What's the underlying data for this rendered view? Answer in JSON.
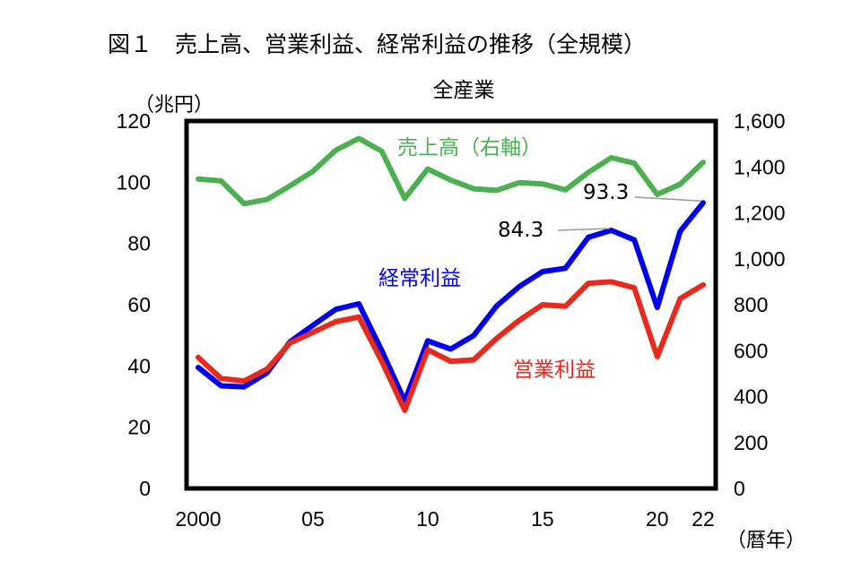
{
  "chart_data": {
    "type": "line",
    "title": "図１　売上高、営業利益、経常利益の推移（全規模）",
    "subtitle": "全産業",
    "ylabel": "（兆円）",
    "xlabel": "（暦年）",
    "ylim": [
      0,
      120
    ],
    "y2lim": [
      0,
      1600
    ],
    "yticks": [
      "0",
      "20",
      "40",
      "60",
      "80",
      "100",
      "120"
    ],
    "y2ticks": [
      "0",
      "200",
      "400",
      "600",
      "800",
      "1,000",
      "1,200",
      "1,400",
      "1,600"
    ],
    "x": [
      2000,
      2001,
      2002,
      2003,
      2004,
      2005,
      2006,
      2007,
      2008,
      2009,
      2010,
      2011,
      2012,
      2013,
      2014,
      2015,
      2016,
      2017,
      2018,
      2019,
      2020,
      2021,
      2022
    ],
    "xticks": [
      {
        "year": 2000,
        "label": "2000"
      },
      {
        "year": 2005,
        "label": "05"
      },
      {
        "year": 2010,
        "label": "10"
      },
      {
        "year": 2015,
        "label": "15"
      },
      {
        "year": 2020,
        "label": "20"
      },
      {
        "year": 2022,
        "label": "22"
      }
    ],
    "series": [
      {
        "name": "売上高（右軸）",
        "axis": "right",
        "color": "#4caf50",
        "values": [
          1347,
          1339,
          1240,
          1258,
          1318,
          1381,
          1473,
          1524,
          1468,
          1263,
          1391,
          1343,
          1305,
          1298,
          1332,
          1326,
          1300,
          1376,
          1440,
          1416,
          1280,
          1325,
          1420
        ]
      },
      {
        "name": "経常利益",
        "axis": "left",
        "color": "#0000ee",
        "values": [
          39.5,
          33.5,
          33.2,
          37.8,
          47.9,
          53.3,
          58.5,
          60.3,
          45.0,
          28.5,
          48.2,
          45.5,
          49.9,
          59.6,
          66.0,
          70.8,
          71.9,
          82.0,
          84.3,
          81.2,
          59.1,
          84.0,
          93.3
        ]
      },
      {
        "name": "営業利益",
        "axis": "left",
        "color": "#e8291c",
        "values": [
          42.8,
          35.9,
          35.1,
          39.0,
          47.5,
          51.0,
          54.5,
          56.0,
          41.5,
          25.5,
          45.3,
          41.5,
          42.0,
          49.0,
          55.0,
          60.0,
          59.5,
          67.0,
          67.5,
          65.5,
          43.0,
          62.0,
          66.5
        ]
      }
    ],
    "annotations": [
      {
        "text": "93.3",
        "year": 2022,
        "value": 93.3
      },
      {
        "text": "84.3",
        "year": 2018,
        "value": 84.3
      }
    ]
  }
}
